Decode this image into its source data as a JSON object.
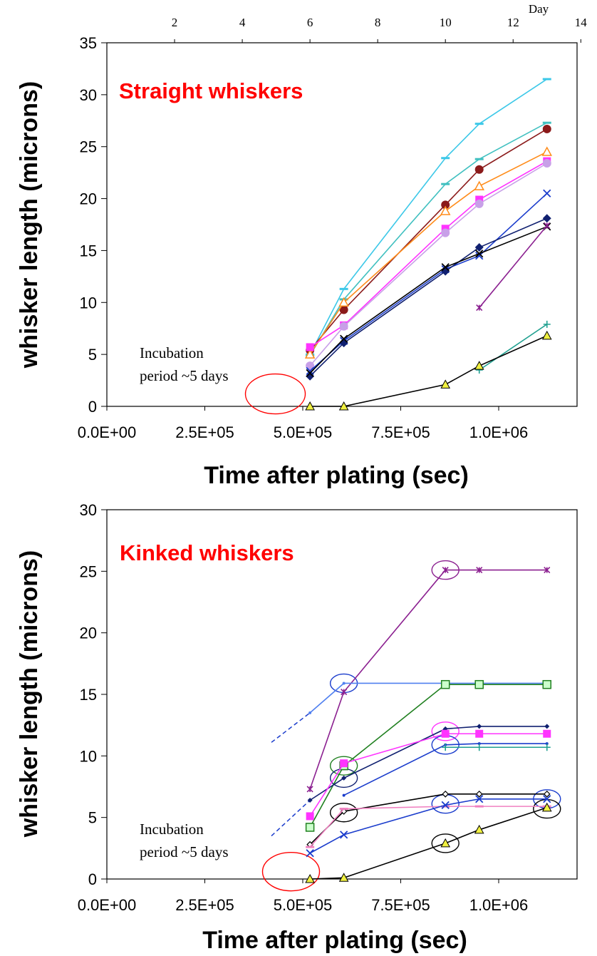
{
  "chart_data": [
    {
      "type": "line",
      "title": "Straight whiskers",
      "title_color": "#ff0000",
      "xlabel": "Time after plating (sec)",
      "ylabel": "whisker length (microns)",
      "xlim": [
        0,
        1200000
      ],
      "ylim": [
        0,
        35
      ],
      "x_ticks": [
        0,
        250000,
        500000,
        750000,
        1000000
      ],
      "x_tick_labels": [
        "0.0E+00",
        "2.5E+05",
        "5.0E+05",
        "7.5E+05",
        "1.0E+06"
      ],
      "y_ticks": [
        0,
        5,
        10,
        15,
        20,
        25,
        30,
        35
      ],
      "secondary_x_axis": {
        "label": "Day",
        "ticks": [
          2,
          4,
          6,
          8,
          10,
          12,
          14
        ],
        "seconds_per_unit": 86400
      },
      "annotation": "Incubation period ~5 days",
      "annotation_lines": [
        "Incubation",
        "period ~5 days"
      ],
      "series": [
        {
          "color": "#3cc8e8",
          "marker": "dash",
          "points": [
            [
              518400,
              5.0
            ],
            [
              604800,
              11.3
            ],
            [
              864000,
              23.9
            ],
            [
              950400,
              27.2
            ],
            [
              1123200,
              31.5
            ]
          ]
        },
        {
          "color": "#40c0c0",
          "marker": "dash",
          "points": [
            [
              518400,
              4.9
            ],
            [
              604800,
              10.3
            ],
            [
              864000,
              21.4
            ],
            [
              950400,
              23.8
            ],
            [
              1123200,
              27.3
            ]
          ]
        },
        {
          "color": "#8b1a1a",
          "marker": "circle",
          "points": [
            [
              518400,
              5.4
            ],
            [
              604800,
              9.3
            ],
            [
              864000,
              19.4
            ],
            [
              950400,
              22.8
            ],
            [
              1123200,
              26.7
            ]
          ]
        },
        {
          "color": "#ff8c1a",
          "marker": "triangle-open",
          "points": [
            [
              518400,
              5.0
            ],
            [
              604800,
              10.0
            ],
            [
              864000,
              18.8
            ],
            [
              950400,
              21.2
            ],
            [
              1123200,
              24.5
            ]
          ]
        },
        {
          "color": "#ff33ff",
          "marker": "square",
          "points": [
            [
              518400,
              5.7
            ],
            [
              604800,
              7.8
            ],
            [
              864000,
              17.1
            ],
            [
              950400,
              19.9
            ],
            [
              1123200,
              23.6
            ]
          ]
        },
        {
          "color": "#c8a0e8",
          "marker": "circle",
          "points": [
            [
              518400,
              3.9
            ],
            [
              604800,
              7.7
            ],
            [
              864000,
              16.7
            ],
            [
              950400,
              19.5
            ],
            [
              1123200,
              23.4
            ]
          ]
        },
        {
          "color": "#1a3ccc",
          "marker": "x",
          "points": [
            [
              518400,
              3.4
            ],
            [
              604800,
              6.3
            ],
            [
              864000,
              13.2
            ],
            [
              950400,
              14.5
            ],
            [
              1123200,
              20.5
            ]
          ]
        },
        {
          "color": "#102070",
          "marker": "diamond",
          "points": [
            [
              518400,
              2.9
            ],
            [
              604800,
              6.1
            ],
            [
              864000,
              13.0
            ],
            [
              950400,
              15.3
            ],
            [
              1123200,
              18.1
            ]
          ]
        },
        {
          "color": "#000000",
          "marker": "x",
          "points": [
            [
              518400,
              3.2
            ],
            [
              604800,
              6.5
            ],
            [
              864000,
              13.4
            ],
            [
              950400,
              14.7
            ],
            [
              1123200,
              17.3
            ]
          ]
        },
        {
          "color": "#8b2090",
          "marker": "star",
          "points": [
            [
              950400,
              9.5
            ],
            [
              1123200,
              17.4
            ]
          ]
        },
        {
          "color": "#20a090",
          "marker": "plus",
          "points": [
            [
              950400,
              3.5
            ],
            [
              1123200,
              7.9
            ]
          ]
        },
        {
          "color": "#000000",
          "marker": "triangle-yellow",
          "points": [
            [
              518400,
              0.0
            ],
            [
              604800,
              0.0
            ],
            [
              864000,
              2.1
            ],
            [
              950400,
              3.9
            ],
            [
              1123200,
              6.8
            ]
          ]
        }
      ],
      "highlight_ellipses": [
        {
          "color": "#ff0000",
          "x": 430000,
          "y": 1.2
        }
      ]
    },
    {
      "type": "line",
      "title": "Kinked whiskers",
      "title_color": "#ff0000",
      "xlabel": "Time after plating (sec)",
      "ylabel": "whisker length (microns)",
      "xlim": [
        0,
        1200000
      ],
      "ylim": [
        0,
        30
      ],
      "x_ticks": [
        0,
        250000,
        500000,
        750000,
        1000000
      ],
      "x_tick_labels": [
        "0.0E+00",
        "2.5E+05",
        "5.0E+05",
        "7.5E+05",
        "1.0E+06"
      ],
      "y_ticks": [
        0,
        5,
        10,
        15,
        20,
        25,
        30
      ],
      "annotation": "Incubation period ~5 days",
      "annotation_lines": [
        "Incubation",
        "period ~5 days"
      ],
      "series": [
        {
          "color": "#8b2090",
          "marker": "star",
          "points": [
            [
              518400,
              7.3
            ],
            [
              604800,
              15.2
            ],
            [
              864000,
              25.1
            ],
            [
              950400,
              25.1
            ],
            [
              1123200,
              25.1
            ]
          ]
        },
        {
          "color": "#5080f0",
          "marker": "dot",
          "points": [
            [
              518400,
              13.5
            ],
            [
              604800,
              15.9
            ],
            [
              864000,
              15.9
            ],
            [
              950400,
              15.9
            ],
            [
              1123200,
              15.9
            ]
          ]
        },
        {
          "color": "#208020",
          "marker": "square-open",
          "points": [
            [
              518400,
              4.2
            ],
            [
              604800,
              9.2
            ],
            [
              864000,
              15.8
            ],
            [
              950400,
              15.8
            ],
            [
              1123200,
              15.8
            ]
          ]
        },
        {
          "color": "#102070",
          "marker": "diamond-small",
          "points": [
            [
              518400,
              6.4
            ],
            [
              604800,
              8.2
            ],
            [
              864000,
              12.2
            ],
            [
              950400,
              12.4
            ],
            [
              1123200,
              12.4
            ]
          ]
        },
        {
          "color": "#ff33ff",
          "marker": "square",
          "points": [
            [
              518400,
              5.1
            ],
            [
              604800,
              9.4
            ],
            [
              864000,
              11.8
            ],
            [
              950400,
              11.8
            ],
            [
              1123200,
              11.8
            ]
          ]
        },
        {
          "color": "#1a3ccc",
          "marker": "dot",
          "points": [
            [
              604800,
              6.8
            ],
            [
              864000,
              10.9
            ],
            [
              950400,
              11.0
            ],
            [
              1123200,
              11.0
            ]
          ]
        },
        {
          "color": "#20a090",
          "marker": "plus",
          "points": [
            [
              864000,
              10.7
            ],
            [
              950400,
              10.7
            ],
            [
              1123200,
              10.7
            ]
          ]
        },
        {
          "color": "#000000",
          "marker": "diamond-open",
          "points": [
            [
              518400,
              2.8
            ],
            [
              604800,
              5.5
            ],
            [
              864000,
              6.9
            ],
            [
              950400,
              6.9
            ],
            [
              1123200,
              6.9
            ]
          ]
        },
        {
          "color": "#f080c0",
          "marker": "dash",
          "points": [
            [
              518400,
              2.6
            ],
            [
              604800,
              5.7
            ],
            [
              864000,
              5.9
            ],
            [
              950400,
              5.9
            ],
            [
              1123200,
              5.9
            ]
          ]
        },
        {
          "color": "#1a3ccc",
          "marker": "x",
          "points": [
            [
              518400,
              2.1
            ],
            [
              604800,
              3.6
            ],
            [
              864000,
              6.0
            ],
            [
              950400,
              6.5
            ],
            [
              1123200,
              6.5
            ]
          ]
        },
        {
          "color": "#000000",
          "marker": "triangle-yellow",
          "points": [
            [
              518400,
              0.0
            ],
            [
              604800,
              0.1
            ],
            [
              864000,
              2.9
            ],
            [
              950400,
              4.0
            ],
            [
              1123200,
              5.8
            ]
          ]
        }
      ],
      "dashed_extrapolations": [
        {
          "color": "#1a3ccc",
          "points": [
            [
              420000,
              11.1
            ],
            [
              518400,
              13.5
            ]
          ]
        },
        {
          "color": "#1a3ccc",
          "points": [
            [
              420000,
              3.5
            ],
            [
              518400,
              6.4
            ]
          ]
        }
      ],
      "highlight_ellipses": [
        {
          "color": "#ff0000",
          "x": 470000,
          "y": 0.6
        },
        {
          "color": "#8b2090",
          "x": 864000,
          "y": 25.1
        },
        {
          "color": "#1a3ccc",
          "x": 604800,
          "y": 15.9
        },
        {
          "color": "#208020",
          "x": 604800,
          "y": 9.2
        },
        {
          "color": "#ff33ff",
          "x": 864000,
          "y": 12.0
        },
        {
          "color": "#1a3ccc",
          "x": 864000,
          "y": 10.9
        },
        {
          "color": "#102070",
          "x": 604800,
          "y": 8.2
        },
        {
          "color": "#000000",
          "x": 604800,
          "y": 5.4
        },
        {
          "color": "#1a3ccc",
          "x": 864000,
          "y": 6.1
        },
        {
          "color": "#000000",
          "x": 864000,
          "y": 2.9
        },
        {
          "color": "#1a3ccc",
          "x": 1123200,
          "y": 6.5
        },
        {
          "color": "#000000",
          "x": 1123200,
          "y": 5.7
        }
      ]
    }
  ]
}
